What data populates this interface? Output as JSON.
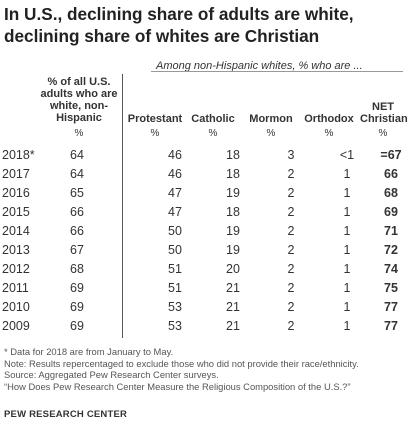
{
  "title": "In U.S., declining share of adults are white, declining share of whites are Christian",
  "subhead": "Among non-Hispanic whites, % who are ...",
  "headers": {
    "white": "% of all U.S. adults who are white, non-Hispanic",
    "protestant": "Protestant",
    "catholic": "Catholic",
    "mormon": "Mormon",
    "orthodox": "Orthodox",
    "net": "NET Christian"
  },
  "pct_symbol": "%",
  "rows": [
    {
      "year": "2018*",
      "white": "64",
      "protestant": "46",
      "catholic": "18",
      "mormon": "3",
      "orthodox": "<1",
      "net": "=67"
    },
    {
      "year": "2017",
      "white": "64",
      "protestant": "46",
      "catholic": "18",
      "mormon": "2",
      "orthodox": "1",
      "net": "66"
    },
    {
      "year": "2016",
      "white": "65",
      "protestant": "47",
      "catholic": "19",
      "mormon": "2",
      "orthodox": "1",
      "net": "68"
    },
    {
      "year": "2015",
      "white": "66",
      "protestant": "47",
      "catholic": "18",
      "mormon": "2",
      "orthodox": "1",
      "net": "69"
    },
    {
      "year": "2014",
      "white": "66",
      "protestant": "50",
      "catholic": "19",
      "mormon": "2",
      "orthodox": "1",
      "net": "71"
    },
    {
      "year": "2013",
      "white": "67",
      "protestant": "50",
      "catholic": "19",
      "mormon": "2",
      "orthodox": "1",
      "net": "72"
    },
    {
      "year": "2012",
      "white": "68",
      "protestant": "51",
      "catholic": "20",
      "mormon": "2",
      "orthodox": "1",
      "net": "74"
    },
    {
      "year": "2011",
      "white": "69",
      "protestant": "51",
      "catholic": "21",
      "mormon": "2",
      "orthodox": "1",
      "net": "75"
    },
    {
      "year": "2010",
      "white": "69",
      "protestant": "53",
      "catholic": "21",
      "mormon": "2",
      "orthodox": "1",
      "net": "77"
    },
    {
      "year": "2009",
      "white": "69",
      "protestant": "53",
      "catholic": "21",
      "mormon": "2",
      "orthodox": "1",
      "net": "77"
    }
  ],
  "notes": [
    "* Data for 2018 are from January to May.",
    "Note: Results repercentaged to exclude those who did not provide their race/ethnicity.",
    "Source: Aggregated Pew Research Center surveys.",
    "“How Does Pew Research Center Measure the Religious Composition of the U.S.?”"
  ],
  "brand": "PEW RESEARCH CENTER"
}
